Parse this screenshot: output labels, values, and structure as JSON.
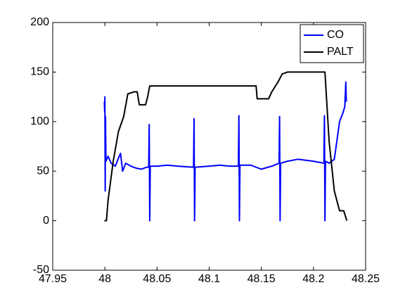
{
  "chart_data": {
    "type": "line",
    "xlim": [
      47.95,
      48.25
    ],
    "xticks": [
      47.95,
      48,
      48.05,
      48.1,
      48.15,
      48.2,
      48.25
    ],
    "ylim": [
      -50,
      200
    ],
    "yticks": [
      -50,
      0,
      50,
      100,
      150,
      200
    ],
    "legend": "northeast",
    "grid": false,
    "series": [
      {
        "name": "CO",
        "color": "#0000ff",
        "x": [
          47.9995,
          47.9998,
          48.0,
          48.0003,
          48.0006,
          48.001,
          48.003,
          48.006,
          48.01,
          48.013,
          48.015,
          48.017,
          48.02,
          48.025,
          48.03,
          48.035,
          48.04,
          48.042,
          48.0425,
          48.043,
          48.0435,
          48.05,
          48.06,
          48.07,
          48.085,
          48.0855,
          48.086,
          48.0865,
          48.1,
          48.11,
          48.12,
          48.128,
          48.1285,
          48.129,
          48.1295,
          48.14,
          48.15,
          48.16,
          48.167,
          48.1675,
          48.168,
          48.1685,
          48.175,
          48.185,
          48.2,
          48.21,
          48.2105,
          48.211,
          48.2115,
          48.215,
          48.22,
          48.225,
          48.228,
          48.23,
          48.231,
          48.2315
        ],
        "values": [
          120,
          110,
          125,
          30,
          105,
          60,
          65,
          58,
          55,
          63,
          68,
          50,
          58,
          55,
          53,
          52,
          54,
          54,
          97,
          0,
          55,
          55,
          56,
          55,
          54,
          103,
          0,
          54,
          55,
          56,
          55,
          55,
          106,
          0,
          56,
          56,
          52,
          55,
          58,
          105,
          0,
          58,
          60,
          62,
          60,
          58,
          106,
          0,
          60,
          58,
          62,
          100,
          108,
          115,
          140,
          120
        ]
      },
      {
        "name": "PALT",
        "color": "#000000",
        "x": [
          47.9995,
          48.0015,
          48.003,
          48.008,
          48.013,
          48.018,
          48.022,
          48.028,
          48.031,
          48.033,
          48.039,
          48.041,
          48.043,
          48.1,
          48.145,
          48.146,
          48.157,
          48.16,
          48.166,
          48.17,
          48.175,
          48.196,
          48.211,
          48.215,
          48.22,
          48.225,
          48.229,
          48.232
        ],
        "values": [
          0,
          0,
          20,
          60,
          90,
          105,
          128,
          130,
          130,
          117,
          117,
          125,
          136,
          136,
          136,
          123,
          123,
          130,
          140,
          148,
          150,
          150,
          150,
          80,
          30,
          10,
          10,
          0
        ]
      }
    ]
  }
}
